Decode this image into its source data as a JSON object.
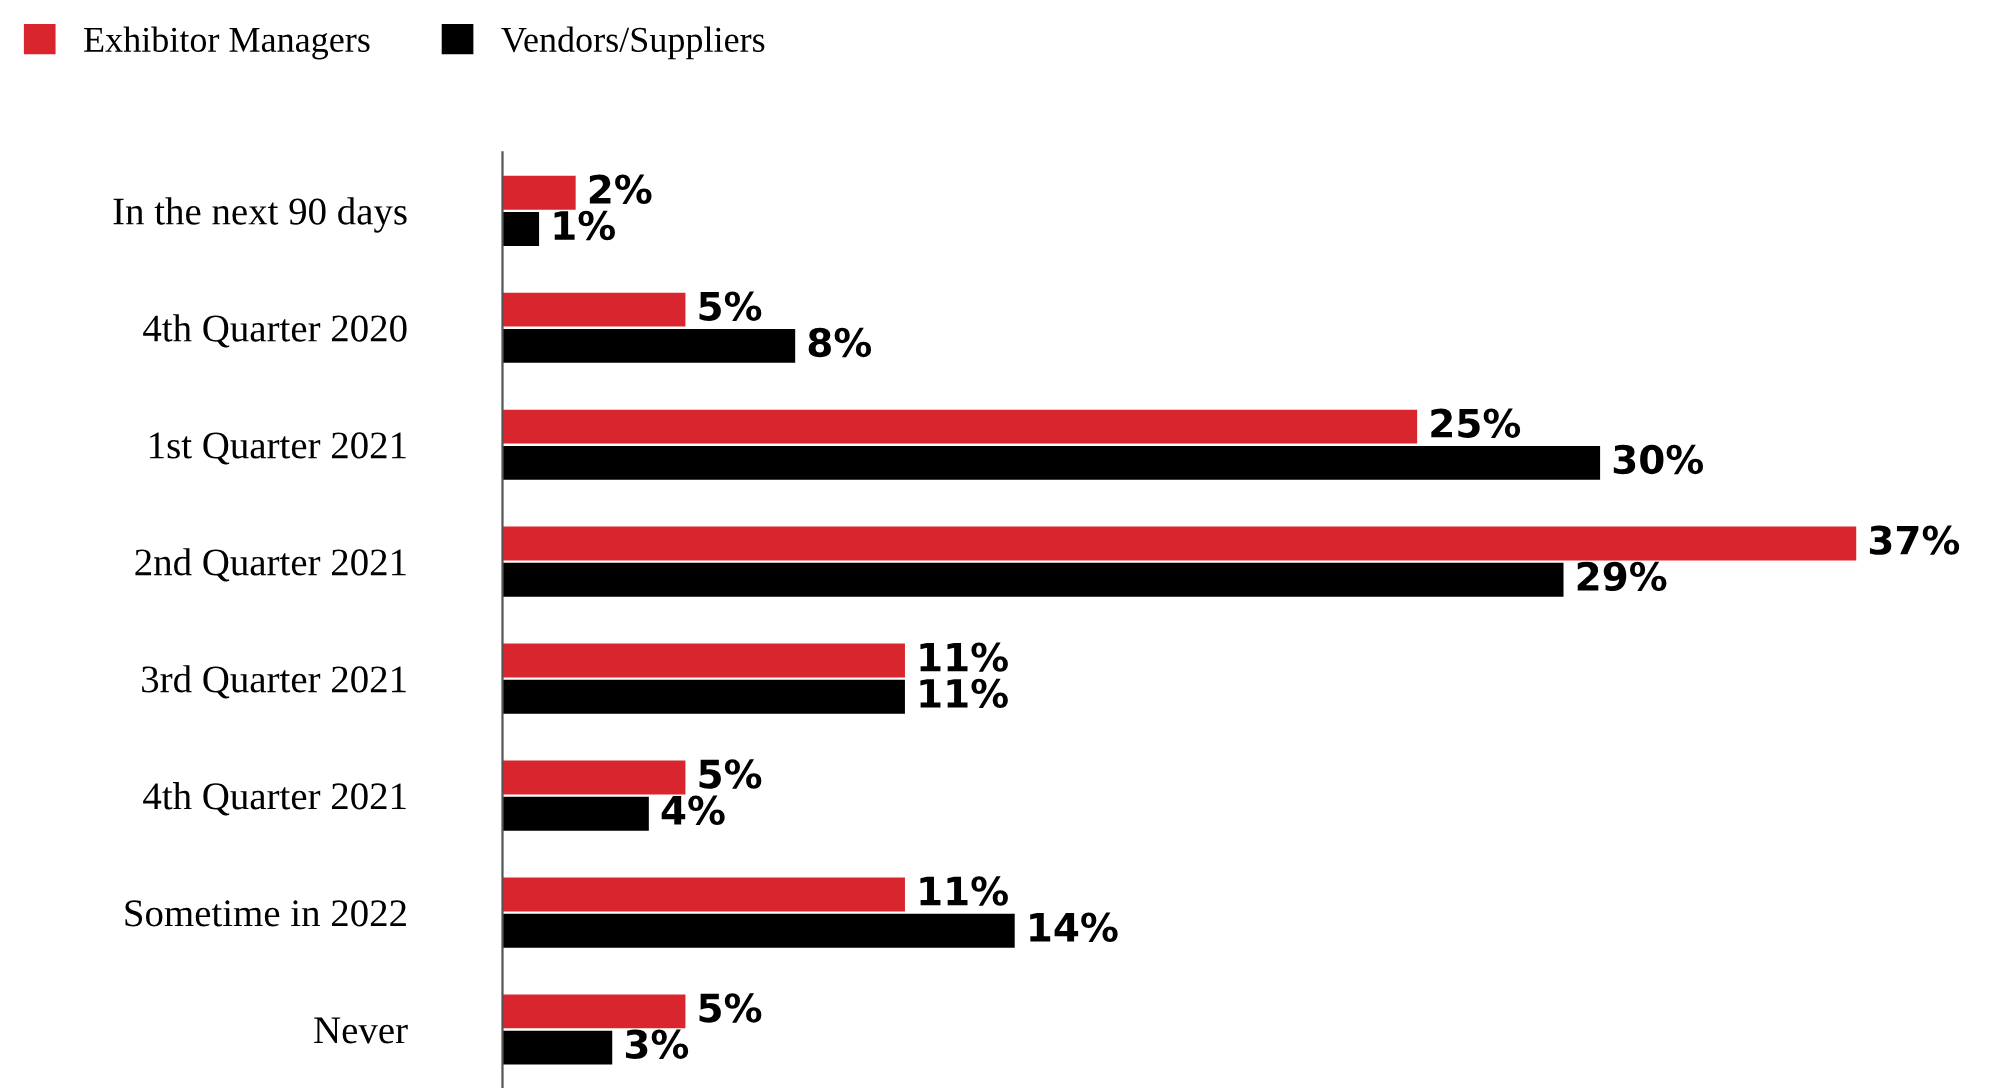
{
  "chart_data": {
    "type": "bar",
    "orientation": "horizontal",
    "categories": [
      "In the next 90 days",
      "4th Quarter 2020",
      "1st Quarter 2021",
      "2nd Quarter 2021",
      "3rd Quarter 2021",
      "4th Quarter 2021",
      "Sometime in 2022",
      "Never"
    ],
    "series": [
      {
        "name": "Exhibitor Managers",
        "color": "#d9252d",
        "values": [
          2,
          5,
          25,
          37,
          11,
          5,
          11,
          5
        ],
        "value_labels": [
          "2%",
          "5%",
          "25%",
          "37%",
          "11%",
          "5%",
          "11%",
          "5%"
        ]
      },
      {
        "name": "Vendors/Suppliers",
        "color": "#000000",
        "values": [
          1,
          8,
          30,
          29,
          11,
          4,
          14,
          3
        ],
        "value_labels": [
          "1%",
          "8%",
          "30%",
          "29%",
          "11%",
          "4%",
          "14%",
          "3%"
        ]
      }
    ],
    "legend": "top left",
    "grid": false,
    "tick_labels": "y"
  }
}
